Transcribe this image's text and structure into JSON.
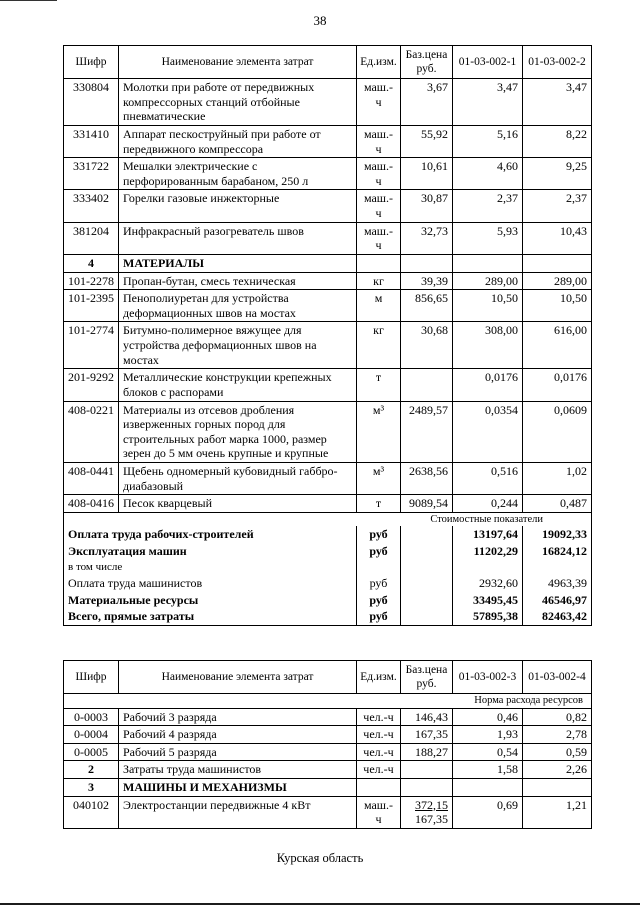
{
  "page": {
    "number": "38",
    "footer": "Курская область"
  },
  "tables": [
    {
      "name": "cost-table-1",
      "headers": [
        "Шифр",
        "Наименование элемента затрат",
        "Ед.изм.",
        "Баз.цена руб.",
        "01-03-002-1",
        "01-03-002-2"
      ],
      "rows": [
        {
          "type": "item",
          "code": "330804",
          "name": "Молотки при работе от передвижных компрессорных станций отбойные пневматические",
          "unit": "маш.-ч",
          "price": "3,67",
          "c1": "3,47",
          "c2": "3,47"
        },
        {
          "type": "item",
          "code": "331410",
          "name": "Аппарат пескоструйный при работе от передвижного компрессора",
          "unit": "маш.-ч",
          "price": "55,92",
          "c1": "5,16",
          "c2": "8,22"
        },
        {
          "type": "item",
          "code": "331722",
          "name": "Мешалки электрические с перфорированным барабаном, 250 л",
          "unit": "маш.-ч",
          "price": "10,61",
          "c1": "4,60",
          "c2": "9,25"
        },
        {
          "type": "item",
          "code": "333402",
          "name": "Горелки газовые инжекторные",
          "unit": "маш.-ч",
          "price": "30,87",
          "c1": "2,37",
          "c2": "2,37"
        },
        {
          "type": "item",
          "code": "381204",
          "name": "Инфракрасный разогреватель швов",
          "unit": "маш.-ч",
          "price": "32,73",
          "c1": "5,93",
          "c2": "10,43"
        },
        {
          "type": "section",
          "code": "4",
          "name": "МАТЕРИАЛЫ"
        },
        {
          "type": "item",
          "code": "101-2278",
          "name": "Пропан-бутан, смесь техническая",
          "unit": "кг",
          "price": "39,39",
          "c1": "289,00",
          "c2": "289,00"
        },
        {
          "type": "item",
          "code": "101-2395",
          "name": "Пенополиуретан для устройства деформационных швов на мостах",
          "unit": "м",
          "price": "856,65",
          "c1": "10,50",
          "c2": "10,50"
        },
        {
          "type": "item",
          "code": "101-2774",
          "name": "Битумно-полимерное вяжущее для устройства деформационных швов на мостах",
          "unit": "кг",
          "price": "30,68",
          "c1": "308,00",
          "c2": "616,00"
        },
        {
          "type": "item",
          "code": "201-9292",
          "name": "Металлические конструкции крепежных блоков с распорами",
          "unit": "т",
          "price": "",
          "c1": "0,0176",
          "c2": "0,0176"
        },
        {
          "type": "item",
          "code": "408-0221",
          "name": "Материалы из отсевов дробления изверженных горных пород для строительных работ марка 1000, размер зерен до 5 мм очень крупные и крупные",
          "unit": "м³",
          "price": "2489,57",
          "c1": "0,0354",
          "c2": "0,0609"
        },
        {
          "type": "item",
          "code": "408-0441",
          "name": "Щебень одномерный кубовидный габбро-диабазовый",
          "unit": "м³",
          "price": "2638,56",
          "c1": "0,516",
          "c2": "1,02"
        },
        {
          "type": "item",
          "code": "408-0416",
          "name": "Песок кварцевый",
          "unit": "т",
          "price": "9089,54",
          "c1": "0,244",
          "c2": "0,487"
        },
        {
          "type": "note",
          "text": "Стоимостные показатели"
        },
        {
          "type": "summary",
          "bold": true,
          "name": "Оплата труда рабочих-строителей",
          "unit": "руб",
          "c1": "13197,64",
          "c2": "19092,33"
        },
        {
          "type": "summary",
          "bold": true,
          "name": "Эксплуатация машин",
          "unit": "руб",
          "c1": "11202,29",
          "c2": "16824,12"
        },
        {
          "type": "summary",
          "bold": false,
          "small": true,
          "name": "в том числе",
          "unit": "",
          "c1": "",
          "c2": ""
        },
        {
          "type": "summary",
          "bold": false,
          "name": "Оплата труда машинистов",
          "unit": "руб",
          "c1": "2932,60",
          "c2": "4963,39"
        },
        {
          "type": "summary",
          "bold": true,
          "name": "Материальные ресурсы",
          "unit": "руб",
          "c1": "33495,45",
          "c2": "46546,97"
        },
        {
          "type": "summary",
          "bold": true,
          "name": "Всего, прямые затраты",
          "unit": "руб",
          "c1": "57895,38",
          "c2": "82463,42"
        }
      ]
    },
    {
      "name": "cost-table-2",
      "headers": [
        "Шифр",
        "Наименование элемента затрат",
        "Ед.изм.",
        "Баз.цена руб.",
        "01-03-002-3",
        "01-03-002-4"
      ],
      "rows": [
        {
          "type": "note",
          "text": "Норма расхода ресурсов"
        },
        {
          "type": "item",
          "code": "0-0003",
          "name": "Рабочий 3 разряда",
          "unit": "чел.-ч",
          "price": "146,43",
          "c1": "0,46",
          "c2": "0,82"
        },
        {
          "type": "item",
          "code": "0-0004",
          "name": "Рабочий 4 разряда",
          "unit": "чел.-ч",
          "price": "167,35",
          "c1": "1,93",
          "c2": "2,78"
        },
        {
          "type": "item",
          "code": "0-0005",
          "name": "Рабочий 5 разряда",
          "unit": "чел.-ч",
          "price": "188,27",
          "c1": "0,54",
          "c2": "0,59"
        },
        {
          "type": "item",
          "code": "2",
          "bold_code": true,
          "name": "Затраты труда машинистов",
          "unit": "чел.-ч",
          "price": "",
          "c1": "1,58",
          "c2": "2,26"
        },
        {
          "type": "section",
          "code": "3",
          "name": "МАШИНЫ И МЕХАНИЗМЫ"
        },
        {
          "type": "item",
          "code": "040102",
          "name": "Электростанции передвижные 4 кВт",
          "unit": "маш.-ч",
          "price_frac": [
            "372,15",
            "167,35"
          ],
          "c1": "0,69",
          "c2": "1,21"
        }
      ]
    }
  ]
}
